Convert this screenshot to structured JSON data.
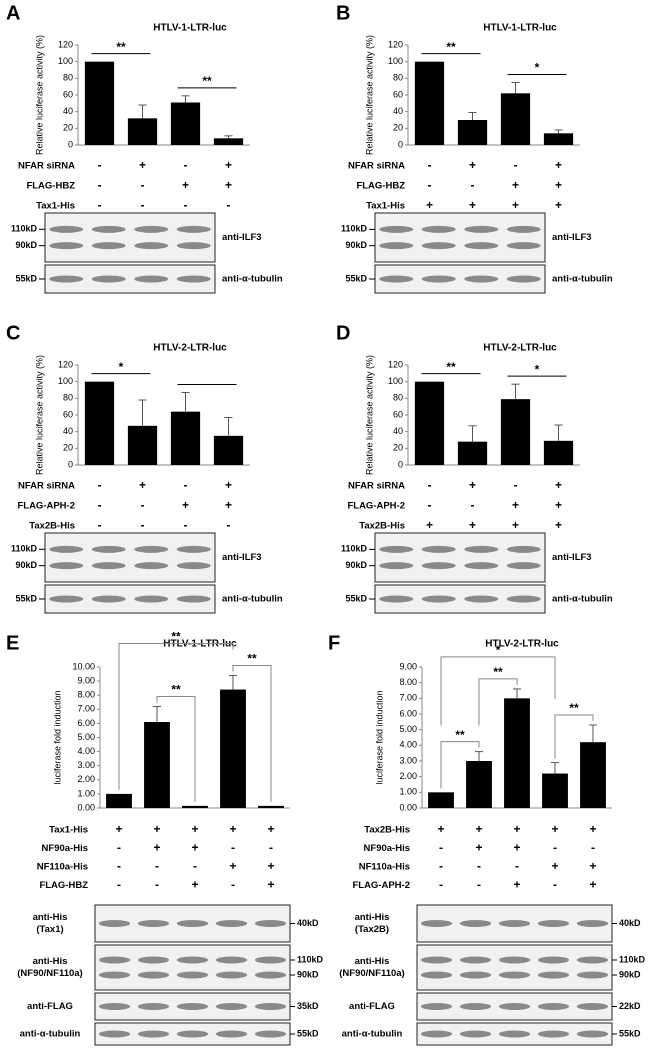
{
  "chart_data": [
    {
      "type": "bar",
      "title": "HTLV-1-LTR-luc",
      "y_label": "Relative luciferase activity (%)",
      "categories": [
        null,
        null,
        null,
        null
      ],
      "values": [
        100,
        32,
        51,
        8
      ],
      "errors": [
        null,
        16,
        8,
        3
      ],
      "color": "#000000",
      "ylim": [
        0,
        120
      ],
      "yticks": [
        0,
        20,
        40,
        60,
        80,
        100,
        120
      ],
      "annotations": [
        {
          "text": "**",
          "from": 0,
          "to": 1
        },
        {
          "text": "**",
          "from": 2,
          "to": 3
        }
      ]
    },
    {
      "type": "bar",
      "title": "HTLV-1-LTR-luc",
      "y_label": "Relative luciferase activity (%)",
      "categories": [
        null,
        null,
        null,
        null
      ],
      "values": [
        100,
        30,
        62,
        14
      ],
      "errors": [
        null,
        9,
        13,
        4
      ],
      "color": "#000000",
      "ylim": [
        0,
        120
      ],
      "yticks": [
        0,
        20,
        40,
        60,
        80,
        100,
        120
      ],
      "annotations": [
        {
          "text": "**",
          "from": 0,
          "to": 1
        },
        {
          "text": "*",
          "from": 2,
          "to": 3
        }
      ]
    },
    {
      "type": "bar",
      "title": "HTLV-2-LTR-luc",
      "y_label": "Relative luciferase activity (%)",
      "categories": [
        null,
        null,
        null,
        null
      ],
      "values": [
        100,
        47,
        64,
        35
      ],
      "errors": [
        null,
        31,
        23,
        22
      ],
      "color": "#000000",
      "ylim": [
        0,
        120
      ],
      "yticks": [
        0,
        20,
        40,
        60,
        80,
        100,
        120
      ],
      "annotations": [
        {
          "text": "*",
          "from": 0,
          "to": 1
        },
        {
          "from": 2,
          "to": 3
        }
      ]
    },
    {
      "type": "bar",
      "title": "HTLV-2-LTR-luc",
      "y_label": "Relative luciferase activity (%)",
      "categories": [
        null,
        null,
        null,
        null
      ],
      "values": [
        100,
        28,
        79,
        29
      ],
      "errors": [
        null,
        19,
        18,
        19
      ],
      "color": "#000000",
      "ylim": [
        0,
        120
      ],
      "yticks": [
        0,
        20,
        40,
        60,
        80,
        100,
        120
      ],
      "annotations": [
        {
          "text": "**",
          "from": 0,
          "to": 1
        },
        {
          "text": "*",
          "from": 2,
          "to": 3
        }
      ]
    },
    {
      "type": "bar",
      "title": "HTLV-1-LTR-luc",
      "y_label": "luciferase fold induction",
      "categories": [
        null,
        null,
        null,
        null,
        null
      ],
      "values": [
        1.0,
        6.1,
        0.15,
        8.4,
        0.15
      ],
      "errors": [
        null,
        1.1,
        null,
        1.0,
        null
      ],
      "color": "#000000",
      "ylim": [
        0,
        10
      ],
      "yticks": [
        {
          "value": 0,
          "label": "0.00"
        },
        {
          "value": 1,
          "label": "1.00"
        },
        {
          "value": 2,
          "label": "2.00"
        },
        {
          "value": 3,
          "label": "3.00"
        },
        {
          "value": 4,
          "label": "4.00"
        },
        {
          "value": 5,
          "label": "5.00"
        },
        {
          "value": 6,
          "label": "6.00"
        },
        {
          "value": 7,
          "label": "7.00"
        },
        {
          "value": 8,
          "label": "8.00"
        },
        {
          "value": 9,
          "label": "9.00"
        },
        {
          "value": 10,
          "label": "10.00"
        }
      ],
      "annotations": [
        {
          "text": "**",
          "from": 1,
          "to": 2
        },
        {
          "text": "**",
          "from": 3,
          "to": 4
        },
        {
          "text": "**",
          "from": 0,
          "to": 3
        }
      ]
    },
    {
      "type": "bar",
      "title": "HTLV-2-LTR-luc",
      "y_label": "luciferase fold induction",
      "categories": [
        null,
        null,
        null,
        null,
        null
      ],
      "values": [
        1.0,
        3.0,
        7.0,
        2.2,
        4.2
      ],
      "errors": [
        null,
        0.6,
        0.6,
        0.7,
        1.1
      ],
      "color": "#000000",
      "ylim": [
        0,
        9
      ],
      "yticks": [
        {
          "value": 0,
          "label": "0.00"
        },
        {
          "value": 1,
          "label": "1.00"
        },
        {
          "value": 2,
          "label": "2.00"
        },
        {
          "value": 3,
          "label": "3.00"
        },
        {
          "value": 4,
          "label": "4.00"
        },
        {
          "value": 5,
          "label": "5.00"
        },
        {
          "value": 6,
          "label": "6.00"
        },
        {
          "value": 7,
          "label": "7.00"
        },
        {
          "value": 8,
          "label": "8.00"
        },
        {
          "value": 9,
          "label": "9.00"
        }
      ],
      "annotations": [
        {
          "text": "**",
          "from": 0,
          "to": 1
        },
        {
          "text": "**",
          "from": 1,
          "to": 2
        },
        {
          "text": "**",
          "from": 3,
          "to": 4
        },
        {
          "text": "*",
          "from": 0,
          "to": 3
        }
      ]
    }
  ],
  "panels": [
    {
      "letter": "A",
      "conditions": [
        {
          "name": "NFAR siRNA",
          "signs": [
            "-",
            "+",
            "-",
            "+"
          ]
        },
        {
          "name": "FLAG-HBZ",
          "signs": [
            "-",
            "-",
            "+",
            "+"
          ]
        },
        {
          "name": "Tax1-His",
          "signs": [
            "-",
            "-",
            "-",
            "-"
          ]
        }
      ],
      "blots": [
        {
          "antibody": [
            "anti-ILF3"
          ],
          "markers": [
            "110kD",
            "90kD"
          ]
        },
        {
          "antibody": [
            "anti-α-tubulin"
          ],
          "markers": [
            "55kD"
          ]
        }
      ]
    },
    {
      "letter": "B",
      "conditions": [
        {
          "name": "NFAR siRNA",
          "signs": [
            "-",
            "+",
            "-",
            "+"
          ]
        },
        {
          "name": "FLAG-HBZ",
          "signs": [
            "-",
            "-",
            "+",
            "+"
          ]
        },
        {
          "name": "Tax1-His",
          "signs": [
            "+",
            "+",
            "+",
            "+"
          ]
        }
      ],
      "blots": [
        {
          "antibody": [
            "anti-ILF3"
          ],
          "markers": [
            "110kD",
            "90kD"
          ]
        },
        {
          "antibody": [
            "anti-α-tubulin"
          ],
          "markers": [
            "55kD"
          ]
        }
      ]
    },
    {
      "letter": "C",
      "conditions": [
        {
          "name": "NFAR siRNA",
          "signs": [
            "-",
            "+",
            "-",
            "+"
          ]
        },
        {
          "name": "FLAG-APH-2",
          "signs": [
            "-",
            "-",
            "+",
            "+"
          ]
        },
        {
          "name": "Tax2B-His",
          "signs": [
            "-",
            "-",
            "-",
            "-"
          ]
        }
      ],
      "blots": [
        {
          "antibody": [
            "anti-ILF3"
          ],
          "markers": [
            "110kD",
            "90kD"
          ]
        },
        {
          "antibody": [
            "anti-α-tubulin"
          ],
          "markers": [
            "55kD"
          ]
        }
      ]
    },
    {
      "letter": "D",
      "conditions": [
        {
          "name": "NFAR siRNA",
          "signs": [
            "-",
            "+",
            "-",
            "+"
          ]
        },
        {
          "name": "FLAG-APH-2",
          "signs": [
            "-",
            "-",
            "+",
            "+"
          ]
        },
        {
          "name": "Tax2B-His",
          "signs": [
            "+",
            "+",
            "+",
            "+"
          ]
        }
      ],
      "blots": [
        {
          "antibody": [
            "anti-ILF3"
          ],
          "markers": [
            "110kD",
            "90kD"
          ]
        },
        {
          "antibody": [
            "anti-α-tubulin"
          ],
          "markers": [
            "55kD"
          ]
        }
      ]
    },
    {
      "letter": "E",
      "conditions": [
        {
          "name": "Tax1-His",
          "signs": [
            "+",
            "+",
            "+",
            "+",
            "+"
          ]
        },
        {
          "name": "NF90a-His",
          "signs": [
            "-",
            "+",
            "+",
            "-",
            "-"
          ]
        },
        {
          "name": "NF110a-His",
          "signs": [
            "-",
            "-",
            "-",
            "+",
            "+"
          ]
        },
        {
          "name": "FLAG-HBZ",
          "signs": [
            "-",
            "-",
            "+",
            "-",
            "+"
          ]
        }
      ],
      "blots": [
        {
          "antibody": [
            "anti-His",
            "(Tax1)"
          ],
          "markers": [
            "40kD"
          ]
        },
        {
          "antibody": [
            "anti-His",
            "(NF90/NF110a)"
          ],
          "markers": [
            "110kD",
            "90kD"
          ]
        },
        {
          "antibody": [
            "anti-FLAG"
          ],
          "markers": [
            "35kD"
          ]
        },
        {
          "antibody": [
            "anti-α-tubulin"
          ],
          "markers": [
            "55kD"
          ]
        }
      ]
    },
    {
      "letter": "F",
      "conditions": [
        {
          "name": "Tax2B-His",
          "signs": [
            "+",
            "+",
            "+",
            "+",
            "+"
          ]
        },
        {
          "name": "NF90a-His",
          "signs": [
            "-",
            "+",
            "+",
            "-",
            "-"
          ]
        },
        {
          "name": "NF110a-His",
          "signs": [
            "-",
            "-",
            "-",
            "+",
            "+"
          ]
        },
        {
          "name": "FLAG-APH-2",
          "signs": [
            "-",
            "-",
            "+",
            "-",
            "+"
          ]
        }
      ],
      "blots": [
        {
          "antibody": [
            "anti-His",
            "(Tax2B)"
          ],
          "markers": [
            "40kD"
          ]
        },
        {
          "antibody": [
            "anti-His",
            "(NF90/NF110a)"
          ],
          "markers": [
            "110kD",
            "90kD"
          ]
        },
        {
          "antibody": [
            "anti-FLAG"
          ],
          "markers": [
            "22kD"
          ]
        },
        {
          "antibody": [
            "anti-α-tubulin"
          ],
          "markers": [
            "55kD"
          ]
        }
      ]
    }
  ]
}
